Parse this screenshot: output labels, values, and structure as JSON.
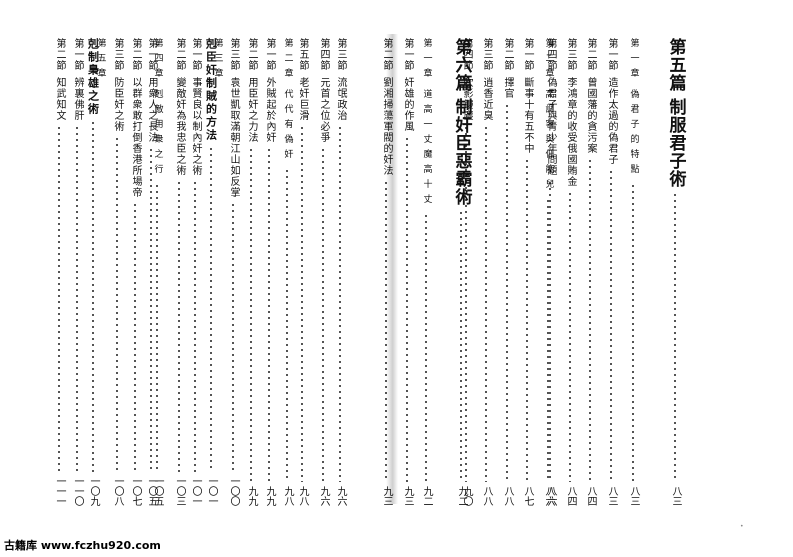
{
  "right_page": {
    "columns": [
      {
        "type": "part",
        "label": "第五篇",
        "title": "制服君子術",
        "page": "八三"
      },
      {
        "type": "chapter",
        "label": "第一章",
        "title": "偽君子的特點",
        "page": "八三"
      },
      {
        "type": "section",
        "label": "第一節",
        "title": "造作太過的偽君子",
        "page": "八三"
      },
      {
        "type": "section",
        "label": "第二節",
        "title": "曾國藩的貪污案",
        "page": "八四"
      },
      {
        "type": "section",
        "label": "第三節",
        "title": "李鴻章的收受俄國賄金",
        "page": "八四"
      },
      {
        "type": "section",
        "label": "第四節",
        "title": "偽君子與青少年問題",
        "page": "八六"
      },
      {
        "type": "chapter",
        "label": "第二章",
        "title": "高調客與低能兒",
        "page": "八六"
      },
      {
        "type": "section",
        "label": "第一節",
        "title": "斷事十有五不中",
        "page": "八七"
      },
      {
        "type": "section",
        "label": "第二節",
        "title": "擇官",
        "page": "八八"
      },
      {
        "type": "section",
        "label": "第三節",
        "title": "逍香近臭",
        "page": "八八"
      },
      {
        "type": "section",
        "label": "第四節",
        "title": "吹影鏤塵",
        "page": "九〇"
      },
      {
        "type": "part",
        "label": "第六篇",
        "title": "制奸臣惡霸術",
        "page": "九二"
      },
      {
        "type": "chapter",
        "label": "第一章",
        "title": "道高一丈魔高十丈",
        "page": "九二"
      },
      {
        "type": "section",
        "label": "第一節",
        "title": "奸雄的作風",
        "page": "九三"
      },
      {
        "type": "section",
        "label": "第二節",
        "title": "劉湘掃蕩軍閥的奸法",
        "page": "九三"
      }
    ]
  },
  "left_page": {
    "columns": [
      {
        "type": "section",
        "label": "第三節",
        "title": "流氓政治",
        "page": "九六"
      },
      {
        "type": "section",
        "label": "第四節",
        "title": "元首之位必爭",
        "page": "九六"
      },
      {
        "type": "section",
        "label": "第五節",
        "title": "老奸巨滑",
        "page": "九八"
      },
      {
        "type": "chapter",
        "label": "第二章",
        "title": "代代有偽奸",
        "page": "九八"
      },
      {
        "type": "section",
        "label": "第一節",
        "title": "外賊起於內奸",
        "page": "九九"
      },
      {
        "type": "section",
        "label": "第二節",
        "title": "用臣奸之力法",
        "page": "九九"
      },
      {
        "type": "section",
        "label": "第三節",
        "title": "袁世凱取滿朝江山如反掌",
        "page": "一〇〇"
      },
      {
        "type": "chapter",
        "label": "第三章",
        "title": "",
        "page": ""
      },
      {
        "type": "chapter",
        "label": "",
        "title": "剋臣奸制賊的方法",
        "page": "一〇一"
      },
      {
        "type": "section",
        "label": "第一節",
        "title": "事賢良以制內奸之術",
        "page": "一〇一"
      },
      {
        "type": "section",
        "label": "第二節",
        "title": "變敵奸為我忠臣之術",
        "page": "一〇三"
      },
      {
        "type": "chapter",
        "label": "第四章",
        "title": "剋敵用衆之行",
        "page": "一〇五"
      },
      {
        "type": "section",
        "label": "第一節",
        "title": "用衆人之長法",
        "page": "一〇五"
      },
      {
        "type": "section",
        "label": "第二節",
        "title": "以群衆敢打倒香港所場帝",
        "page": "一〇七"
      },
      {
        "type": "section",
        "label": "第三節",
        "title": "防臣奸之術",
        "page": "一〇八"
      },
      {
        "type": "chapter",
        "label": "第五章",
        "title": "",
        "page": ""
      },
      {
        "type": "chapter",
        "label": "",
        "title": "剋制梟雄之術",
        "page": "一〇九"
      },
      {
        "type": "section",
        "label": "第一節",
        "title": "辨裏佛肝",
        "page": "一一〇"
      },
      {
        "type": "section",
        "label": "第二節",
        "title": "知武知文",
        "page": "一一一"
      }
    ]
  },
  "footer": {
    "brand": "古籍库",
    "url": "www.fczhu920.com"
  }
}
